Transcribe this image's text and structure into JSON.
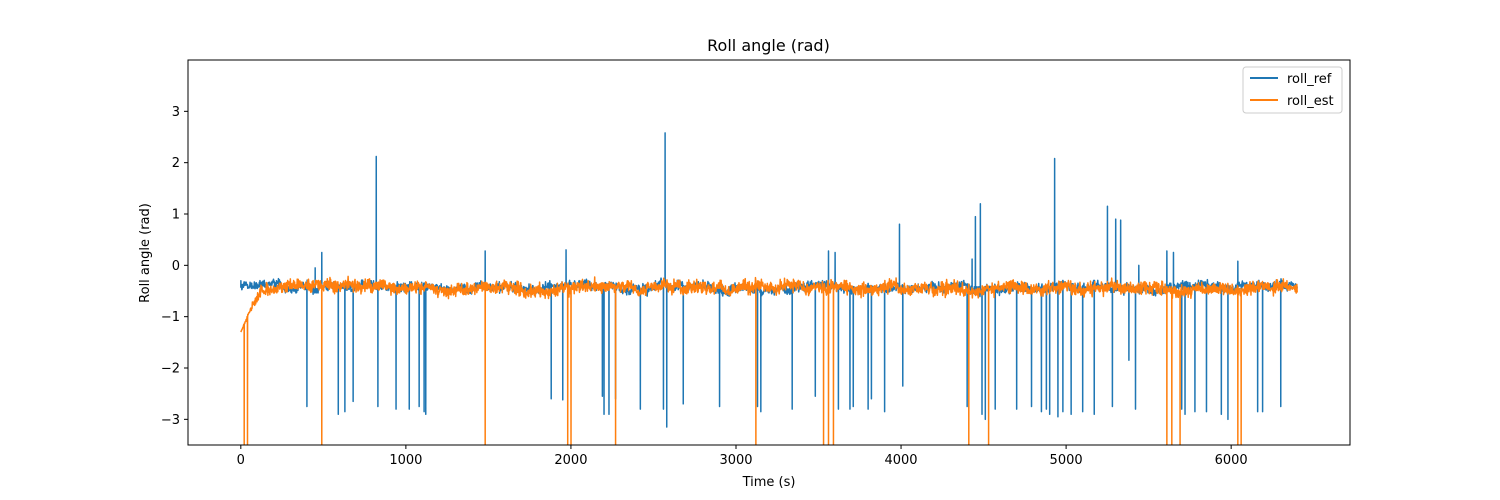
{
  "chart_data": {
    "type": "line",
    "title": "Roll angle (rad)",
    "xlabel": "Time (s)",
    "ylabel": "Roll angle (rad)",
    "xlim": [
      -320,
      6720
    ],
    "ylim": [
      -3.5,
      4.0
    ],
    "xticks": [
      0,
      1000,
      2000,
      3000,
      4000,
      5000,
      6000
    ],
    "xtick_labels": [
      "0",
      "1000",
      "2000",
      "3000",
      "4000",
      "5000",
      "6000"
    ],
    "yticks": [
      -3,
      -2,
      -1,
      0,
      1,
      2,
      3
    ],
    "ytick_labels": [
      "−3",
      "−2",
      "−1",
      "0",
      "1",
      "2",
      "3"
    ],
    "grid": false,
    "legend_position": "top-right",
    "x_range": [
      0,
      6400
    ],
    "series": [
      {
        "name": "roll_ref",
        "color": "#1f77b4",
        "baseline_mean": -0.42,
        "baseline_noise": 0.08,
        "spikes": [
          [
            0,
            -0.3
          ],
          [
            400,
            -2.75
          ],
          [
            450,
            -0.05
          ],
          [
            490,
            0.25
          ],
          [
            590,
            -2.9
          ],
          [
            630,
            -2.85
          ],
          [
            680,
            -2.65
          ],
          [
            820,
            2.12
          ],
          [
            830,
            -2.75
          ],
          [
            940,
            -2.8
          ],
          [
            1020,
            -2.8
          ],
          [
            1080,
            -2.75
          ],
          [
            1110,
            -2.85
          ],
          [
            1120,
            -2.9
          ],
          [
            1480,
            0.28
          ],
          [
            1880,
            -2.6
          ],
          [
            1950,
            -2.62
          ],
          [
            1970,
            0.3
          ],
          [
            2190,
            -2.55
          ],
          [
            2200,
            -2.9
          ],
          [
            2230,
            -2.9
          ],
          [
            2270,
            -2.6
          ],
          [
            2420,
            -2.8
          ],
          [
            2560,
            -2.8
          ],
          [
            2570,
            2.58
          ],
          [
            2580,
            -3.15
          ],
          [
            2680,
            -2.7
          ],
          [
            2900,
            -2.75
          ],
          [
            3130,
            -2.75
          ],
          [
            3150,
            -2.85
          ],
          [
            3340,
            -2.8
          ],
          [
            3480,
            -2.55
          ],
          [
            3560,
            0.28
          ],
          [
            3600,
            0.25
          ],
          [
            3620,
            -2.8
          ],
          [
            3690,
            -2.8
          ],
          [
            3710,
            -2.75
          ],
          [
            3800,
            -2.8
          ],
          [
            3820,
            -2.6
          ],
          [
            3900,
            -2.85
          ],
          [
            3990,
            0.8
          ],
          [
            4010,
            -2.35
          ],
          [
            4400,
            -2.75
          ],
          [
            4430,
            0.12
          ],
          [
            4450,
            0.95
          ],
          [
            4480,
            1.2
          ],
          [
            4490,
            -2.9
          ],
          [
            4510,
            -3.0
          ],
          [
            4570,
            -2.8
          ],
          [
            4700,
            -2.8
          ],
          [
            4790,
            -2.75
          ],
          [
            4850,
            -2.85
          ],
          [
            4880,
            -2.8
          ],
          [
            4900,
            -2.9
          ],
          [
            4930,
            2.08
          ],
          [
            4950,
            -2.95
          ],
          [
            4980,
            -2.85
          ],
          [
            5030,
            -2.9
          ],
          [
            5100,
            -2.85
          ],
          [
            5170,
            -2.9
          ],
          [
            5250,
            1.15
          ],
          [
            5280,
            -2.75
          ],
          [
            5300,
            0.9
          ],
          [
            5330,
            0.88
          ],
          [
            5380,
            -1.85
          ],
          [
            5420,
            -2.8
          ],
          [
            5440,
            0.0
          ],
          [
            5610,
            0.28
          ],
          [
            5650,
            0.25
          ],
          [
            5700,
            -2.8
          ],
          [
            5720,
            -2.9
          ],
          [
            5780,
            -2.85
          ],
          [
            5850,
            -2.85
          ],
          [
            5940,
            -2.9
          ],
          [
            5980,
            -3.0
          ],
          [
            6040,
            0.08
          ],
          [
            6160,
            -2.85
          ],
          [
            6190,
            -2.85
          ],
          [
            6300,
            -2.75
          ]
        ]
      },
      {
        "name": "roll_est",
        "color": "#ff7f0e",
        "start_value": -1.3,
        "baseline_mean": -0.45,
        "baseline_noise": 0.12,
        "spikes": [
          [
            20,
            -3.5
          ],
          [
            40,
            -3.5
          ],
          [
            490,
            -3.5
          ],
          [
            1480,
            -3.5
          ],
          [
            1980,
            -3.5
          ],
          [
            2000,
            -3.5
          ],
          [
            2270,
            -3.5
          ],
          [
            3120,
            -3.5
          ],
          [
            3530,
            -3.5
          ],
          [
            3560,
            -3.5
          ],
          [
            3590,
            -3.5
          ],
          [
            4410,
            -3.5
          ],
          [
            4530,
            -3.5
          ],
          [
            5610,
            -3.5
          ],
          [
            5640,
            -3.5
          ],
          [
            5690,
            -3.5
          ],
          [
            6040,
            -3.5
          ],
          [
            6060,
            -3.5
          ]
        ]
      }
    ]
  }
}
